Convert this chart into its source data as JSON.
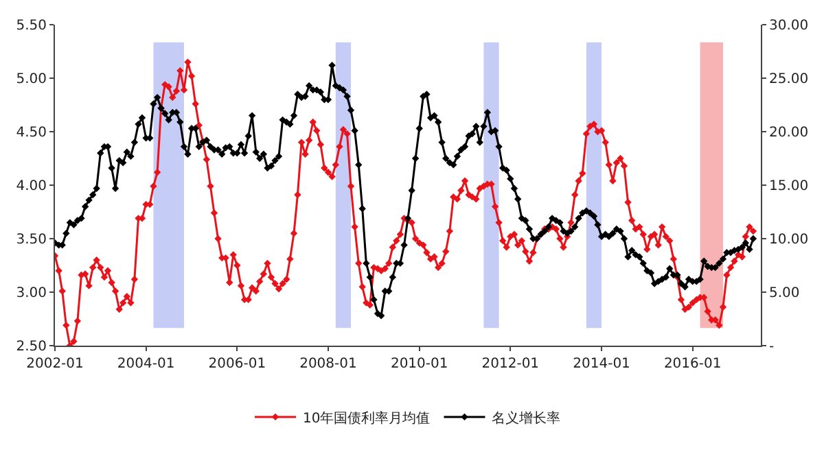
{
  "chart_data": {
    "type": "line",
    "marker": "diamond",
    "line_style": "solid",
    "grid": false,
    "legend": "bottom",
    "xlim": [
      "2002-01",
      "2017-07"
    ],
    "xticks": [
      {
        "value": "2002-01",
        "label": "2002-01"
      },
      {
        "value": "2004-01",
        "label": "2004-01"
      },
      {
        "value": "2006-01",
        "label": "2006-01"
      },
      {
        "value": "2008-01",
        "label": "2008-01"
      },
      {
        "value": "2010-01",
        "label": "2010-01"
      },
      {
        "value": "2012-01",
        "label": "2012-01"
      },
      {
        "value": "2014-01",
        "label": "2014-01"
      },
      {
        "value": "2016-01",
        "label": "2016-01"
      }
    ],
    "ylim": [
      2.5,
      5.5
    ],
    "yticks": [
      {
        "value": 2.5,
        "label": "2.50"
      },
      {
        "value": 3,
        "label": "3.00"
      },
      {
        "value": 3.5,
        "label": "3.50"
      },
      {
        "value": 4,
        "label": "4.00"
      },
      {
        "value": 4.5,
        "label": "4.50"
      },
      {
        "value": 5,
        "label": "5.00"
      },
      {
        "value": 5.5,
        "label": "5.50"
      }
    ],
    "y2lim": [
      0,
      30
    ],
    "y2ticks": [
      {
        "value": 0,
        "label": "-"
      },
      {
        "value": 5,
        "label": "5.00"
      },
      {
        "value": 10,
        "label": "10.00"
      },
      {
        "value": 15,
        "label": "15.00"
      },
      {
        "value": 20,
        "label": "20.00"
      },
      {
        "value": 25,
        "label": "25.00"
      },
      {
        "value": 30,
        "label": "30.00"
      }
    ],
    "bands": [
      {
        "axis": "x",
        "from": "2004-03",
        "to": "2004-11",
        "color": "#c5cdf7"
      },
      {
        "axis": "x",
        "from": "2008-03",
        "to": "2008-07",
        "color": "#c5cdf7"
      },
      {
        "axis": "x",
        "from": "2011-06",
        "to": "2011-10",
        "color": "#c5cdf7"
      },
      {
        "axis": "x",
        "from": "2013-09",
        "to": "2014-01",
        "color": "#c5cdf7"
      },
      {
        "axis": "x",
        "from": "2016-03",
        "to": "2016-09",
        "color": "#f7b3b3"
      }
    ],
    "x": [
      "2002-01",
      "2002-02",
      "2002-03",
      "2002-04",
      "2002-05",
      "2002-06",
      "2002-07",
      "2002-08",
      "2002-09",
      "2002-10",
      "2002-11",
      "2002-12",
      "2003-01",
      "2003-02",
      "2003-03",
      "2003-04",
      "2003-05",
      "2003-06",
      "2003-07",
      "2003-08",
      "2003-09",
      "2003-10",
      "2003-11",
      "2003-12",
      "2004-01",
      "2004-02",
      "2004-03",
      "2004-04",
      "2004-05",
      "2004-06",
      "2004-07",
      "2004-08",
      "2004-09",
      "2004-10",
      "2004-11",
      "2004-12",
      "2005-01",
      "2005-02",
      "2005-03",
      "2005-04",
      "2005-05",
      "2005-06",
      "2005-07",
      "2005-08",
      "2005-09",
      "2005-10",
      "2005-11",
      "2005-12",
      "2006-01",
      "2006-02",
      "2006-03",
      "2006-04",
      "2006-05",
      "2006-06",
      "2006-07",
      "2006-08",
      "2006-09",
      "2006-10",
      "2006-11",
      "2006-12",
      "2007-01",
      "2007-02",
      "2007-03",
      "2007-04",
      "2007-05",
      "2007-06",
      "2007-07",
      "2007-08",
      "2007-09",
      "2007-10",
      "2007-11",
      "2007-12",
      "2008-01",
      "2008-02",
      "2008-03",
      "2008-04",
      "2008-05",
      "2008-06",
      "2008-07",
      "2008-08",
      "2008-09",
      "2008-10",
      "2008-11",
      "2008-12",
      "2009-01",
      "2009-02",
      "2009-03",
      "2009-04",
      "2009-05",
      "2009-06",
      "2009-07",
      "2009-08",
      "2009-09",
      "2009-10",
      "2009-11",
      "2009-12",
      "2010-01",
      "2010-02",
      "2010-03",
      "2010-04",
      "2010-05",
      "2010-06",
      "2010-07",
      "2010-08",
      "2010-09",
      "2010-10",
      "2010-11",
      "2010-12",
      "2011-01",
      "2011-02",
      "2011-03",
      "2011-04",
      "2011-05",
      "2011-06",
      "2011-07",
      "2011-08",
      "2011-09",
      "2011-10",
      "2011-11",
      "2011-12",
      "2012-01",
      "2012-02",
      "2012-03",
      "2012-04",
      "2012-05",
      "2012-06",
      "2012-07",
      "2012-08",
      "2012-09",
      "2012-10",
      "2012-11",
      "2012-12",
      "2013-01",
      "2013-02",
      "2013-03",
      "2013-04",
      "2013-05",
      "2013-06",
      "2013-07",
      "2013-08",
      "2013-09",
      "2013-10",
      "2013-11",
      "2013-12",
      "2014-01",
      "2014-02",
      "2014-03",
      "2014-04",
      "2014-05",
      "2014-06",
      "2014-07",
      "2014-08",
      "2014-09",
      "2014-10",
      "2014-11",
      "2014-12",
      "2015-01",
      "2015-02",
      "2015-03",
      "2015-04",
      "2015-05",
      "2015-06",
      "2015-07",
      "2015-08",
      "2015-09",
      "2015-10",
      "2015-11",
      "2015-12",
      "2016-01",
      "2016-02",
      "2016-03",
      "2016-04",
      "2016-05",
      "2016-06",
      "2016-07",
      "2016-08",
      "2016-09",
      "2016-10",
      "2016-11",
      "2016-12",
      "2017-01",
      "2017-02",
      "2017-03",
      "2017-04",
      "2017-05"
    ],
    "series": [
      {
        "name": "10年国债利率月均值",
        "color": "#e8141b",
        "values": [
          3.34,
          3.2,
          3.01,
          2.69,
          2.5,
          2.54,
          2.73,
          3.16,
          3.17,
          3.06,
          3.23,
          3.3,
          3.23,
          3.14,
          3.2,
          3.09,
          3.01,
          2.84,
          2.9,
          2.96,
          2.9,
          3.12,
          3.69,
          3.69,
          3.82,
          3.82,
          3.99,
          4.12,
          4.72,
          4.94,
          4.92,
          4.82,
          4.88,
          5.07,
          4.89,
          5.15,
          5.02,
          4.76,
          4.56,
          4.41,
          4.24,
          3.99,
          3.74,
          3.5,
          3.32,
          3.32,
          3.09,
          3.35,
          3.25,
          3.06,
          2.93,
          2.93,
          3.04,
          3.01,
          3.1,
          3.17,
          3.27,
          3.14,
          3.08,
          3.03,
          3.08,
          3.12,
          3.31,
          3.55,
          3.91,
          4.4,
          4.29,
          4.42,
          4.59,
          4.51,
          4.38,
          4.16,
          4.12,
          4.08,
          4.19,
          4.36,
          4.52,
          4.48,
          3.99,
          3.61,
          3.27,
          3.05,
          2.9,
          2.88,
          3.23,
          3.22,
          3.2,
          3.22,
          3.27,
          3.42,
          3.48,
          3.54,
          3.69,
          3.67,
          3.65,
          3.5,
          3.46,
          3.44,
          3.37,
          3.31,
          3.33,
          3.23,
          3.27,
          3.38,
          3.57,
          3.89,
          3.87,
          3.95,
          4.04,
          3.91,
          3.89,
          3.87,
          3.97,
          3.99,
          4.01,
          4.01,
          3.8,
          3.65,
          3.48,
          3.42,
          3.52,
          3.54,
          3.44,
          3.48,
          3.38,
          3.29,
          3.37,
          3.5,
          3.54,
          3.59,
          3.59,
          3.61,
          3.59,
          3.5,
          3.42,
          3.52,
          3.65,
          3.91,
          4.04,
          4.11,
          4.48,
          4.55,
          4.57,
          4.5,
          4.51,
          4.4,
          4.19,
          4.04,
          4.21,
          4.25,
          4.18,
          3.84,
          3.67,
          3.59,
          3.61,
          3.54,
          3.4,
          3.52,
          3.54,
          3.44,
          3.61,
          3.52,
          3.48,
          3.31,
          3.14,
          2.93,
          2.84,
          2.86,
          2.9,
          2.93,
          2.95,
          2.95,
          2.82,
          2.74,
          2.74,
          2.69,
          2.86,
          3.16,
          3.23,
          3.29,
          3.35,
          3.33,
          3.52,
          3.61,
          3.57
        ]
      },
      {
        "name": "名义增长率",
        "color": "#000000",
        "axis": "y2",
        "values": [
          9.6,
          9.4,
          9.4,
          10.5,
          11.5,
          11.3,
          11.7,
          11.9,
          13.0,
          13.6,
          14.1,
          14.7,
          18.0,
          18.6,
          18.6,
          16.6,
          14.7,
          17.3,
          17.1,
          18.1,
          17.7,
          19.0,
          20.7,
          21.3,
          19.4,
          19.4,
          22.6,
          23.2,
          22.2,
          21.7,
          21.1,
          21.8,
          21.8,
          20.9,
          18.6,
          17.9,
          20.3,
          20.3,
          18.6,
          19.0,
          19.2,
          18.6,
          18.3,
          18.3,
          17.9,
          18.5,
          18.6,
          18.0,
          18.0,
          18.8,
          18.0,
          19.6,
          21.5,
          18.1,
          17.5,
          17.9,
          16.6,
          16.8,
          17.3,
          17.7,
          21.1,
          20.9,
          20.7,
          21.5,
          23.5,
          23.2,
          23.3,
          24.3,
          23.9,
          23.9,
          23.7,
          23.0,
          23.0,
          26.2,
          24.3,
          24.1,
          23.9,
          23.3,
          22.0,
          20.1,
          16.9,
          12.8,
          7.7,
          6.4,
          4.3,
          3.0,
          2.8,
          5.1,
          5.1,
          6.4,
          7.7,
          7.7,
          9.4,
          11.9,
          14.5,
          17.5,
          20.3,
          23.3,
          23.5,
          21.3,
          21.5,
          20.9,
          19.0,
          17.5,
          17.1,
          16.9,
          17.7,
          18.3,
          18.6,
          19.6,
          19.8,
          20.5,
          19.0,
          20.5,
          21.8,
          20.0,
          20.1,
          18.6,
          16.6,
          16.4,
          15.6,
          14.7,
          13.7,
          11.9,
          11.7,
          10.9,
          10.0,
          10.0,
          10.4,
          10.7,
          11.1,
          11.9,
          11.7,
          11.5,
          10.7,
          10.5,
          10.7,
          11.1,
          11.9,
          12.4,
          12.6,
          12.4,
          12.1,
          11.3,
          10.2,
          10.4,
          10.2,
          10.5,
          10.9,
          10.7,
          10.0,
          8.3,
          8.9,
          8.5,
          8.3,
          7.7,
          7.0,
          6.8,
          5.8,
          6.0,
          6.2,
          6.4,
          7.2,
          6.6,
          6.6,
          5.8,
          5.5,
          6.2,
          6.0,
          6.0,
          6.2,
          7.9,
          7.4,
          7.3,
          7.3,
          7.7,
          8.1,
          8.7,
          8.7,
          8.9,
          9.0,
          9.2,
          9.6,
          9.0,
          10.0
        ]
      }
    ]
  }
}
